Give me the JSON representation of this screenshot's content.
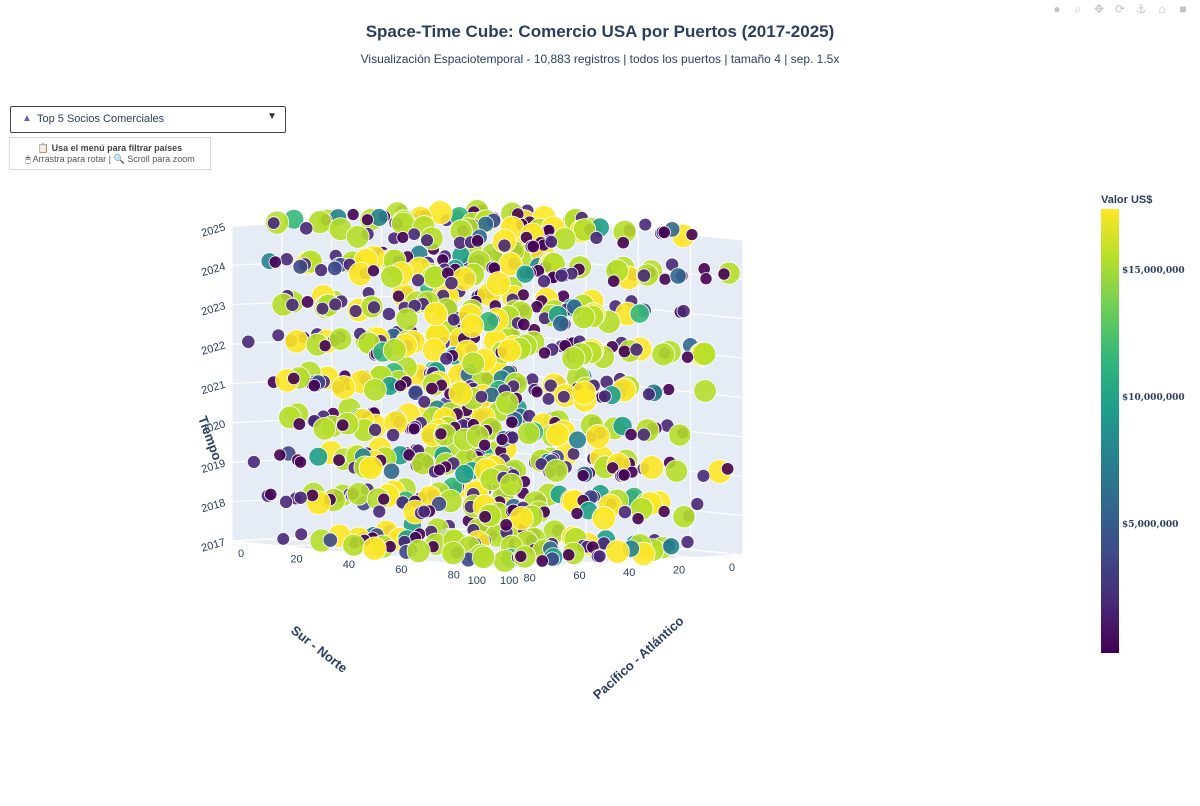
{
  "chart_data": {
    "type": "scatter3d",
    "title": "Space-Time Cube: Comercio USA por Puertos (2017-2025)",
    "subtitle": "Visualización Espaciotemporal - 10,883 registros | todos los puertos | tamaño 4 | sep. 1.5x",
    "x_axis": {
      "label": "Pacífico - Atlántico",
      "range": [
        0,
        100
      ],
      "ticks": [
        "0",
        "20",
        "40",
        "60",
        "80",
        "100"
      ]
    },
    "y_axis": {
      "label": "Sur - Norte",
      "range": [
        0,
        100
      ],
      "ticks": [
        "0",
        "20",
        "40",
        "60",
        "80",
        "100"
      ]
    },
    "z_axis": {
      "label": "Tiempo",
      "range": [
        2017,
        2025
      ],
      "ticks": [
        "2017",
        "2018",
        "2019",
        "2020",
        "2021",
        "2022",
        "2023",
        "2024",
        "2025"
      ]
    },
    "colorbar": {
      "title": "Valor US$",
      "colorscale": "viridis",
      "range": [
        0,
        17500000
      ],
      "ticks": [
        {
          "value": 5000000,
          "label": "$5,000,000"
        },
        {
          "value": 10000000,
          "label": "$10,000,000"
        },
        {
          "value": 15000000,
          "label": "$15,000,000"
        }
      ]
    },
    "point_count_label": "10,883 registros",
    "grid": true
  },
  "controls": {
    "dropdown_icon": "trophy-icon",
    "dropdown_label": "Top 5 Socios Comerciales",
    "hint_line1": "📋 Usa el menú para filtrar países",
    "hint_line2": "🖱 Arrastra para rotar | 🔍 Scroll para zoom"
  },
  "modebar": [
    "camera-icon",
    "zoom-icon",
    "pan-icon",
    "orbit-icon",
    "turntable-icon",
    "home-icon",
    "video-icon"
  ]
}
